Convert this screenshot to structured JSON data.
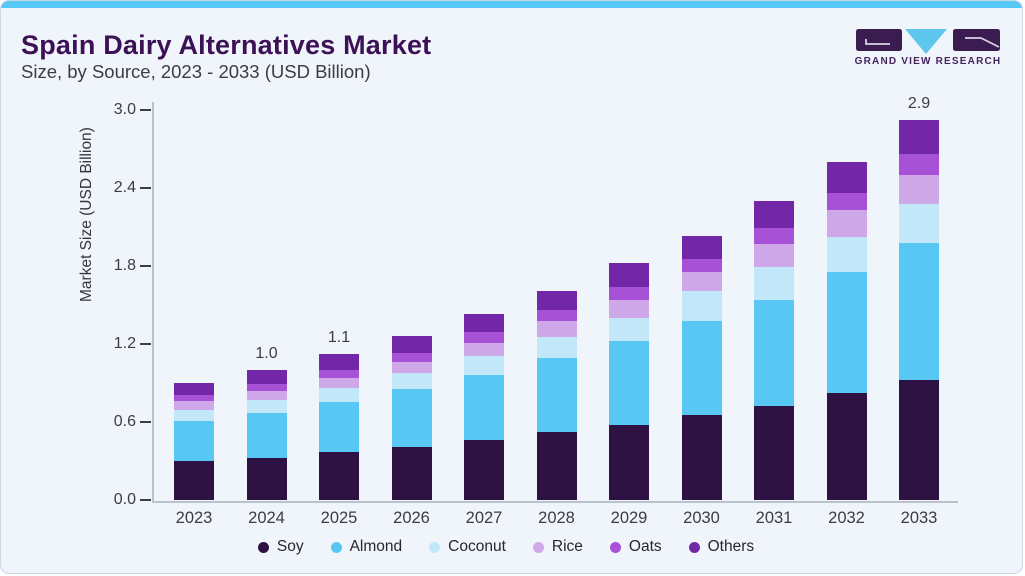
{
  "header": {
    "title": "Spain Dairy Alternatives Market",
    "subtitle": "Size, by Source, 2023 - 2033 (USD Billion)"
  },
  "logo": {
    "text": "GRAND VIEW RESEARCH",
    "purple": "#3a1c50",
    "cyan": "#5ec7ee"
  },
  "chart_data": {
    "type": "bar",
    "stacked": true,
    "title": "Spain Dairy Alternatives Market Size, by Source, 2023 - 2033 (USD Billion)",
    "xlabel": "",
    "ylabel": "Market Size (USD Billion)",
    "ylim": [
      0,
      3.0
    ],
    "yticks": [
      "0.0",
      "0.6",
      "1.2",
      "1.8",
      "2.4",
      "3.0"
    ],
    "grid": false,
    "legend_position": "bottom",
    "categories": [
      "2023",
      "2024",
      "2025",
      "2026",
      "2027",
      "2028",
      "2029",
      "2030",
      "2031",
      "2032",
      "2033"
    ],
    "series": [
      {
        "name": "Soy",
        "color": "#2f1244",
        "values": [
          0.3,
          0.32,
          0.37,
          0.41,
          0.46,
          0.52,
          0.58,
          0.65,
          0.72,
          0.82,
          0.92
        ]
      },
      {
        "name": "Almond",
        "color": "#58c7f3",
        "values": [
          0.31,
          0.35,
          0.38,
          0.44,
          0.5,
          0.57,
          0.64,
          0.73,
          0.82,
          0.93,
          1.06
        ]
      },
      {
        "name": "Coconut",
        "color": "#c1e7f9",
        "values": [
          0.08,
          0.1,
          0.11,
          0.13,
          0.15,
          0.165,
          0.18,
          0.23,
          0.25,
          0.27,
          0.3
        ]
      },
      {
        "name": "Rice",
        "color": "#cea8e8",
        "values": [
          0.07,
          0.07,
          0.08,
          0.08,
          0.1,
          0.12,
          0.14,
          0.14,
          0.18,
          0.21,
          0.22
        ]
      },
      {
        "name": "Oats",
        "color": "#a751d6",
        "values": [
          0.05,
          0.05,
          0.06,
          0.07,
          0.08,
          0.085,
          0.1,
          0.1,
          0.12,
          0.13,
          0.16
        ]
      },
      {
        "name": "Others",
        "color": "#7127a6",
        "values": [
          0.09,
          0.11,
          0.12,
          0.13,
          0.14,
          0.15,
          0.18,
          0.18,
          0.21,
          0.24,
          0.26
        ]
      }
    ],
    "bar_total_labels": [
      {
        "category": "2024",
        "label": "1.0"
      },
      {
        "category": "2025",
        "label": "1.1"
      },
      {
        "category": "2033",
        "label": "2.9"
      }
    ],
    "totals_approx": [
      0.9,
      1.0,
      1.1,
      1.26,
      1.43,
      1.61,
      1.82,
      2.03,
      2.3,
      2.6,
      2.9
    ]
  }
}
